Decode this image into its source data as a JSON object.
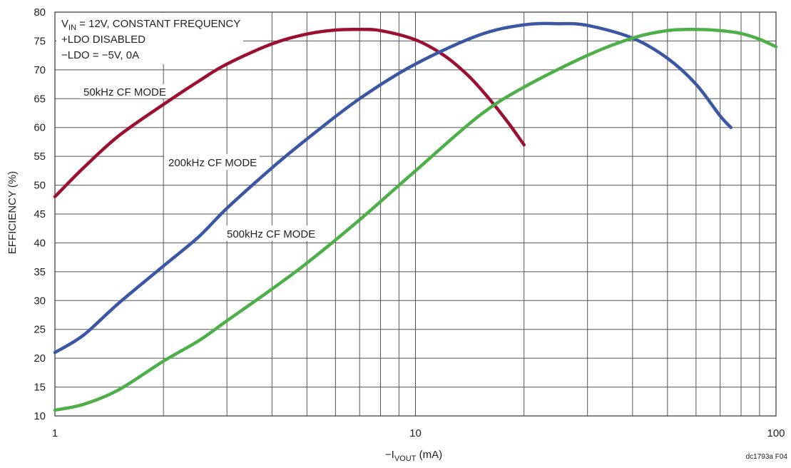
{
  "chart_data": {
    "type": "line",
    "xlabel": "−I",
    "xlabel_sub": "VOUT",
    "xlabel_unit": " (mA)",
    "ylabel": "EFFICIENCY (%)",
    "x_scale": "log",
    "xlim": [
      1,
      100
    ],
    "ylim": [
      10,
      80
    ],
    "x_ticks": [
      1,
      10,
      100
    ],
    "x_tick_labels": [
      "1",
      "10",
      "100"
    ],
    "y_ticks": [
      10,
      15,
      20,
      25,
      30,
      35,
      40,
      45,
      50,
      55,
      60,
      65,
      70,
      75,
      80
    ],
    "y_tick_labels": [
      "10",
      "15",
      "20",
      "25",
      "30",
      "35",
      "40",
      "45",
      "50",
      "55",
      "60",
      "65",
      "70",
      "75",
      "80"
    ],
    "grid": true,
    "conditions": {
      "line1_prefix": "V",
      "line1_sub": "IN",
      "line1_rest": " = 12V, CONSTANT FREQUENCY",
      "line2": "+LDO DISABLED",
      "line3": "−LDO = −5V, 0A"
    },
    "series": [
      {
        "name": "50kHz CF MODE",
        "color": "#9b1030",
        "x": [
          1,
          1.2,
          1.5,
          2,
          2.5,
          3,
          4,
          5,
          6,
          7,
          8,
          10,
          12,
          14,
          16,
          18,
          20
        ],
        "y": [
          48,
          53,
          58.5,
          64,
          68,
          71,
          74.5,
          76.2,
          76.9,
          77,
          76.8,
          75.2,
          72.5,
          69,
          65,
          61,
          57
        ]
      },
      {
        "name": "200kHz CF MODE",
        "color": "#3a56a4",
        "x": [
          1,
          1.2,
          1.5,
          2,
          2.5,
          3,
          4,
          5,
          7,
          10,
          15,
          20,
          25,
          30,
          40,
          50,
          60,
          70,
          75
        ],
        "y": [
          21,
          24,
          29.5,
          36,
          41,
          46,
          53,
          58,
          65,
          71,
          76,
          77.8,
          78,
          77.7,
          75.5,
          72,
          67.5,
          62,
          60
        ]
      },
      {
        "name": "500kHz CF MODE",
        "color": "#4caf47",
        "x": [
          1,
          1.2,
          1.5,
          2,
          2.5,
          3,
          4,
          5,
          7,
          10,
          15,
          20,
          30,
          40,
          50,
          60,
          70,
          80,
          90,
          100
        ],
        "y": [
          11,
          12,
          14.5,
          19.5,
          23,
          26.5,
          32,
          36.5,
          44,
          52.5,
          62,
          67,
          72.5,
          75.5,
          76.8,
          77,
          76.8,
          76.3,
          75.3,
          74
        ]
      }
    ],
    "curve_labels": [
      {
        "text": "50kHz CF MODE",
        "series": 0
      },
      {
        "text": "200kHz CF MODE",
        "series": 1
      },
      {
        "text": "500kHz CF MODE",
        "series": 2
      }
    ],
    "corner_note": "dc1793a F04"
  }
}
